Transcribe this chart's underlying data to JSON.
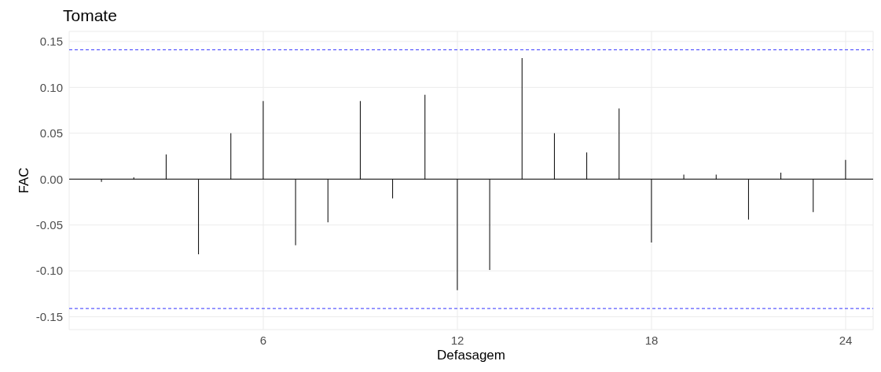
{
  "chart_data": {
    "type": "bar",
    "title": "Tomate",
    "xlabel": "Defasagem",
    "ylabel": "FAC",
    "x": [
      1,
      2,
      3,
      4,
      5,
      6,
      7,
      8,
      9,
      10,
      11,
      12,
      13,
      14,
      15,
      16,
      17,
      18,
      19,
      20,
      21,
      22,
      23,
      24
    ],
    "values": [
      -0.003,
      0.002,
      0.027,
      -0.082,
      0.05,
      0.085,
      -0.072,
      -0.047,
      0.085,
      -0.021,
      0.092,
      -0.121,
      -0.099,
      0.132,
      0.05,
      0.029,
      0.077,
      -0.069,
      0.005,
      0.005,
      -0.044,
      0.007,
      -0.036,
      0.021
    ],
    "color": "#000000",
    "xlim": [
      0,
      24.85
    ],
    "xticks": [
      6,
      12,
      18,
      24
    ],
    "ylim": [
      -0.164,
      0.161
    ],
    "yticks": [
      {
        "value": -0.15,
        "label": "-0.15"
      },
      {
        "value": -0.1,
        "label": "-0.10"
      },
      {
        "value": -0.05,
        "label": "-0.05"
      },
      {
        "value": 0,
        "label": "0.00"
      },
      {
        "value": 0.05,
        "label": "0.05"
      },
      {
        "value": 0.1,
        "label": "0.10"
      },
      {
        "value": 0.15,
        "label": "0.15"
      }
    ],
    "ref_lines": [
      {
        "axis": "y",
        "value": 0.141,
        "color": "#3333ff",
        "line_style": "dashed"
      },
      {
        "axis": "y",
        "value": -0.141,
        "color": "#3333ff",
        "line_style": "dashed"
      },
      {
        "axis": "y",
        "value": 0,
        "color": "#000000",
        "line_style": "solid"
      }
    ],
    "grid": true
  }
}
